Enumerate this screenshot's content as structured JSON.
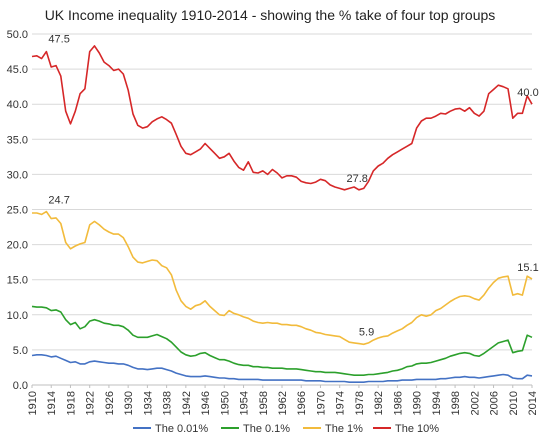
{
  "chart_data": {
    "type": "line",
    "title": "UK Income inequality 1910-2014 - showing the % take of four top groups",
    "xlabel": "",
    "ylabel": "",
    "xlim": [
      1910,
      2014
    ],
    "ylim": [
      0,
      50
    ],
    "y_ticks": [
      0,
      5,
      10,
      15,
      20,
      25,
      30,
      35,
      40,
      45,
      50
    ],
    "y_tick_labels": [
      "0.0",
      "5.0",
      "10.0",
      "15.0",
      "20.0",
      "25.0",
      "30.0",
      "35.0",
      "40.0",
      "45.0",
      "50.0"
    ],
    "x_ticks": [
      1910,
      1914,
      1918,
      1922,
      1926,
      1930,
      1934,
      1938,
      1942,
      1946,
      1950,
      1954,
      1958,
      1962,
      1966,
      1970,
      1974,
      1978,
      1982,
      1986,
      1990,
      1994,
      1998,
      2002,
      2006,
      2010,
      2014
    ],
    "x_tick_labels": [
      "1910",
      "1914",
      "1918",
      "1922",
      "1926",
      "1930",
      "1934",
      "1938",
      "1942",
      "1946",
      "1950",
      "1954",
      "1958",
      "1962",
      "1966",
      "1970",
      "1974",
      "1978",
      "1982",
      "1986",
      "1990",
      "1994",
      "1998",
      "2002",
      "2006",
      "2010",
      "2014"
    ],
    "grid": "horizontal",
    "legend_position": "bottom",
    "x": [
      1910,
      1911,
      1912,
      1913,
      1914,
      1915,
      1916,
      1917,
      1918,
      1919,
      1920,
      1921,
      1922,
      1923,
      1924,
      1925,
      1926,
      1927,
      1928,
      1929,
      1930,
      1931,
      1932,
      1933,
      1934,
      1935,
      1936,
      1937,
      1938,
      1939,
      1940,
      1941,
      1942,
      1943,
      1944,
      1945,
      1946,
      1947,
      1948,
      1949,
      1950,
      1951,
      1952,
      1953,
      1954,
      1955,
      1956,
      1957,
      1958,
      1959,
      1960,
      1961,
      1962,
      1963,
      1964,
      1965,
      1966,
      1967,
      1968,
      1969,
      1970,
      1971,
      1972,
      1973,
      1974,
      1975,
      1976,
      1977,
      1978,
      1979,
      1980,
      1981,
      1982,
      1983,
      1984,
      1985,
      1986,
      1987,
      1988,
      1989,
      1990,
      1991,
      1992,
      1993,
      1994,
      1995,
      1996,
      1997,
      1998,
      1999,
      2000,
      2001,
      2002,
      2003,
      2004,
      2005,
      2006,
      2007,
      2008,
      2009,
      2010,
      2011,
      2012,
      2013,
      2014
    ],
    "series": [
      {
        "name": "The 0.01%",
        "color": "#4472c4",
        "values": [
          4.2,
          4.3,
          4.3,
          4.2,
          4.0,
          4.1,
          3.8,
          3.5,
          3.2,
          3.3,
          3.0,
          3.0,
          3.3,
          3.4,
          3.3,
          3.2,
          3.1,
          3.1,
          3.0,
          3.0,
          2.8,
          2.5,
          2.3,
          2.3,
          2.2,
          2.3,
          2.4,
          2.4,
          2.2,
          2.0,
          1.7,
          1.5,
          1.3,
          1.2,
          1.2,
          1.2,
          1.3,
          1.2,
          1.1,
          1.0,
          1.0,
          0.9,
          0.9,
          0.8,
          0.8,
          0.8,
          0.8,
          0.8,
          0.7,
          0.7,
          0.7,
          0.7,
          0.7,
          0.7,
          0.7,
          0.7,
          0.7,
          0.6,
          0.6,
          0.6,
          0.6,
          0.5,
          0.5,
          0.5,
          0.5,
          0.5,
          0.4,
          0.4,
          0.4,
          0.4,
          0.5,
          0.5,
          0.5,
          0.5,
          0.6,
          0.6,
          0.6,
          0.7,
          0.7,
          0.7,
          0.8,
          0.8,
          0.8,
          0.8,
          0.8,
          0.9,
          0.9,
          1.0,
          1.1,
          1.1,
          1.2,
          1.1,
          1.1,
          1.0,
          1.1,
          1.2,
          1.3,
          1.4,
          1.5,
          1.4,
          1.0,
          0.9,
          0.9,
          1.4,
          1.3
        ]
      },
      {
        "name": "The 0.1%",
        "color": "#2ca02c",
        "values": [
          11.2,
          11.1,
          11.1,
          11.0,
          10.6,
          10.7,
          10.4,
          9.3,
          8.6,
          8.9,
          8.0,
          8.3,
          9.1,
          9.3,
          9.1,
          8.8,
          8.7,
          8.5,
          8.5,
          8.3,
          7.8,
          7.1,
          6.8,
          6.8,
          6.8,
          7.0,
          7.2,
          6.9,
          6.6,
          6.1,
          5.4,
          4.7,
          4.3,
          4.1,
          4.2,
          4.5,
          4.6,
          4.2,
          3.9,
          3.6,
          3.6,
          3.4,
          3.1,
          2.9,
          2.8,
          2.8,
          2.6,
          2.6,
          2.5,
          2.5,
          2.4,
          2.4,
          2.4,
          2.3,
          2.3,
          2.3,
          2.2,
          2.1,
          2.0,
          1.9,
          1.9,
          1.8,
          1.8,
          1.8,
          1.7,
          1.6,
          1.5,
          1.4,
          1.4,
          1.4,
          1.5,
          1.5,
          1.6,
          1.7,
          1.8,
          2.0,
          2.1,
          2.3,
          2.6,
          2.7,
          3.0,
          3.1,
          3.1,
          3.2,
          3.4,
          3.6,
          3.8,
          4.1,
          4.3,
          4.5,
          4.6,
          4.5,
          4.2,
          4.1,
          4.5,
          5.0,
          5.5,
          6.0,
          6.2,
          6.4,
          4.6,
          4.8,
          4.9,
          7.1,
          6.8
        ]
      },
      {
        "name": "The 1%",
        "color": "#f2bb3c",
        "values": [
          24.5,
          24.5,
          24.3,
          24.7,
          23.7,
          23.8,
          23.0,
          20.3,
          19.4,
          19.8,
          20.1,
          20.3,
          22.8,
          23.3,
          22.8,
          22.2,
          21.8,
          21.5,
          21.5,
          21.0,
          19.7,
          18.2,
          17.5,
          17.4,
          17.6,
          17.8,
          17.7,
          17.0,
          16.7,
          15.7,
          13.5,
          12.0,
          11.2,
          10.8,
          11.3,
          11.5,
          12.0,
          11.2,
          10.6,
          10.0,
          9.9,
          10.6,
          10.2,
          10.0,
          9.7,
          9.5,
          9.1,
          8.9,
          8.8,
          8.9,
          8.8,
          8.8,
          8.6,
          8.6,
          8.5,
          8.5,
          8.3,
          8.0,
          7.8,
          7.5,
          7.4,
          7.2,
          7.1,
          7.0,
          6.9,
          6.5,
          6.1,
          6.0,
          5.9,
          5.8,
          6.0,
          6.4,
          6.7,
          6.9,
          7.0,
          7.4,
          7.7,
          8.0,
          8.5,
          8.9,
          9.6,
          10.0,
          9.8,
          10.0,
          10.6,
          10.9,
          11.4,
          11.9,
          12.3,
          12.6,
          12.7,
          12.6,
          12.3,
          12.1,
          12.8,
          13.8,
          14.6,
          15.2,
          15.4,
          15.5,
          12.8,
          13.0,
          12.8,
          15.5,
          15.1
        ]
      },
      {
        "name": "The 10%",
        "color": "#d62728",
        "values": [
          46.8,
          46.9,
          46.5,
          47.5,
          45.3,
          45.5,
          44.0,
          39.0,
          37.2,
          39.0,
          41.5,
          42.2,
          47.5,
          48.3,
          47.3,
          46.0,
          45.5,
          44.8,
          45.0,
          44.3,
          42.0,
          38.6,
          37.0,
          36.6,
          36.8,
          37.5,
          37.9,
          38.2,
          37.8,
          37.3,
          35.7,
          34.0,
          33.0,
          32.8,
          33.2,
          33.6,
          34.4,
          33.7,
          33.0,
          32.3,
          32.5,
          33.0,
          31.9,
          31.0,
          30.6,
          31.8,
          30.3,
          30.2,
          30.5,
          30.0,
          30.7,
          30.2,
          29.5,
          29.8,
          29.8,
          29.6,
          29.0,
          28.8,
          28.7,
          28.9,
          29.3,
          29.1,
          28.5,
          28.2,
          28.0,
          27.8,
          28.0,
          28.2,
          27.8,
          28.0,
          29.0,
          30.5,
          31.2,
          31.6,
          32.3,
          32.8,
          33.2,
          33.6,
          34.0,
          34.4,
          36.6,
          37.6,
          38.0,
          38.0,
          38.3,
          38.7,
          38.6,
          39.0,
          39.3,
          39.4,
          39.0,
          39.5,
          38.7,
          38.3,
          39.0,
          41.5,
          42.1,
          42.7,
          42.5,
          42.2,
          38.0,
          38.7,
          38.7,
          41.2,
          40.0
        ]
      }
    ],
    "annotations": [
      {
        "text": "47.5",
        "x": 1913,
        "y": 47.5
      },
      {
        "text": "24.7",
        "x": 1913,
        "y": 24.7
      },
      {
        "text": "27.8",
        "x": 1975,
        "y": 27.8
      },
      {
        "text": "5.9",
        "x": 1978,
        "y": 5.9
      },
      {
        "text": "40.0",
        "x": 2014,
        "y": 40.0
      },
      {
        "text": "15.1",
        "x": 2014,
        "y": 15.1
      }
    ]
  }
}
